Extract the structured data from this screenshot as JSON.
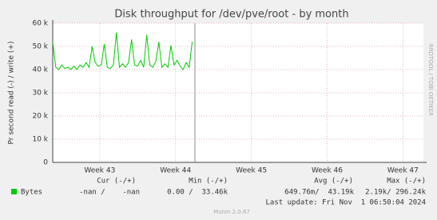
{
  "chart_data": {
    "type": "line",
    "title": "Disk throughput for /dev/pve/root - by month",
    "y_label": "Pr second read (-) / write (+)",
    "watermark": "RRDTOOL / TOBI OETIKER",
    "xlim": [
      42.38,
      47.27
    ],
    "xticks": [
      {
        "value": 43,
        "label": "Week 43"
      },
      {
        "value": 44,
        "label": "Week 44"
      },
      {
        "value": 45,
        "label": "Week 45"
      },
      {
        "value": 46,
        "label": "Week 46"
      },
      {
        "value": 47,
        "label": "Week 47"
      }
    ],
    "ylim": [
      0,
      60000
    ],
    "yticks": [
      0,
      {
        "value": 10000,
        "label": "10 k"
      },
      {
        "value": 20000,
        "label": "20 k"
      },
      {
        "value": 30000,
        "label": "30 k"
      },
      {
        "value": 40000,
        "label": "40 k"
      },
      {
        "value": 50000,
        "label": "50 k"
      },
      {
        "value": 60000,
        "label": "60 k"
      }
    ],
    "grid": true,
    "x": [
      42.38,
      42.42,
      42.46,
      42.5,
      42.54,
      42.58,
      42.62,
      42.66,
      42.7,
      42.74,
      42.78,
      42.82,
      42.86,
      42.9,
      42.94,
      42.98,
      43.02,
      43.06,
      43.1,
      43.14,
      43.18,
      43.22,
      43.26,
      43.3,
      43.34,
      43.38,
      43.42,
      43.46,
      43.5,
      43.54,
      43.58,
      43.62,
      43.66,
      43.7,
      43.74,
      43.78,
      43.82,
      43.86,
      43.9,
      43.94,
      43.98,
      44.02,
      44.06,
      44.1,
      44.14,
      44.18,
      44.22
    ],
    "series": [
      {
        "name": "Bytes",
        "color": "#00cc00",
        "values": [
          52000,
          41000,
          40000,
          42000,
          40500,
          41000,
          40000,
          41500,
          40000,
          42000,
          41000,
          43000,
          41000,
          50000,
          43000,
          41500,
          42000,
          51000,
          41000,
          40500,
          42000,
          56000,
          41000,
          42500,
          41000,
          43000,
          53000,
          42000,
          41500,
          44000,
          41000,
          55000,
          42000,
          41000,
          43500,
          52000,
          41000,
          42500,
          41000,
          50500,
          42000,
          44000,
          41500,
          40000,
          43000,
          41000,
          52000
        ],
        "stats": [
          "-nan /    -nan",
          "0.00 /  33.46k",
          "649.76m/  43.19k",
          "2.19k/ 296.24k"
        ]
      }
    ],
    "stats_headers": [
      "Cur (-/+)",
      "Min (-/+)",
      "Avg (-/+)",
      "Max (-/+)"
    ],
    "last_update": "Last update: Fri Nov  1 06:50:04 2024",
    "footer": "Munin 2.0.67"
  }
}
